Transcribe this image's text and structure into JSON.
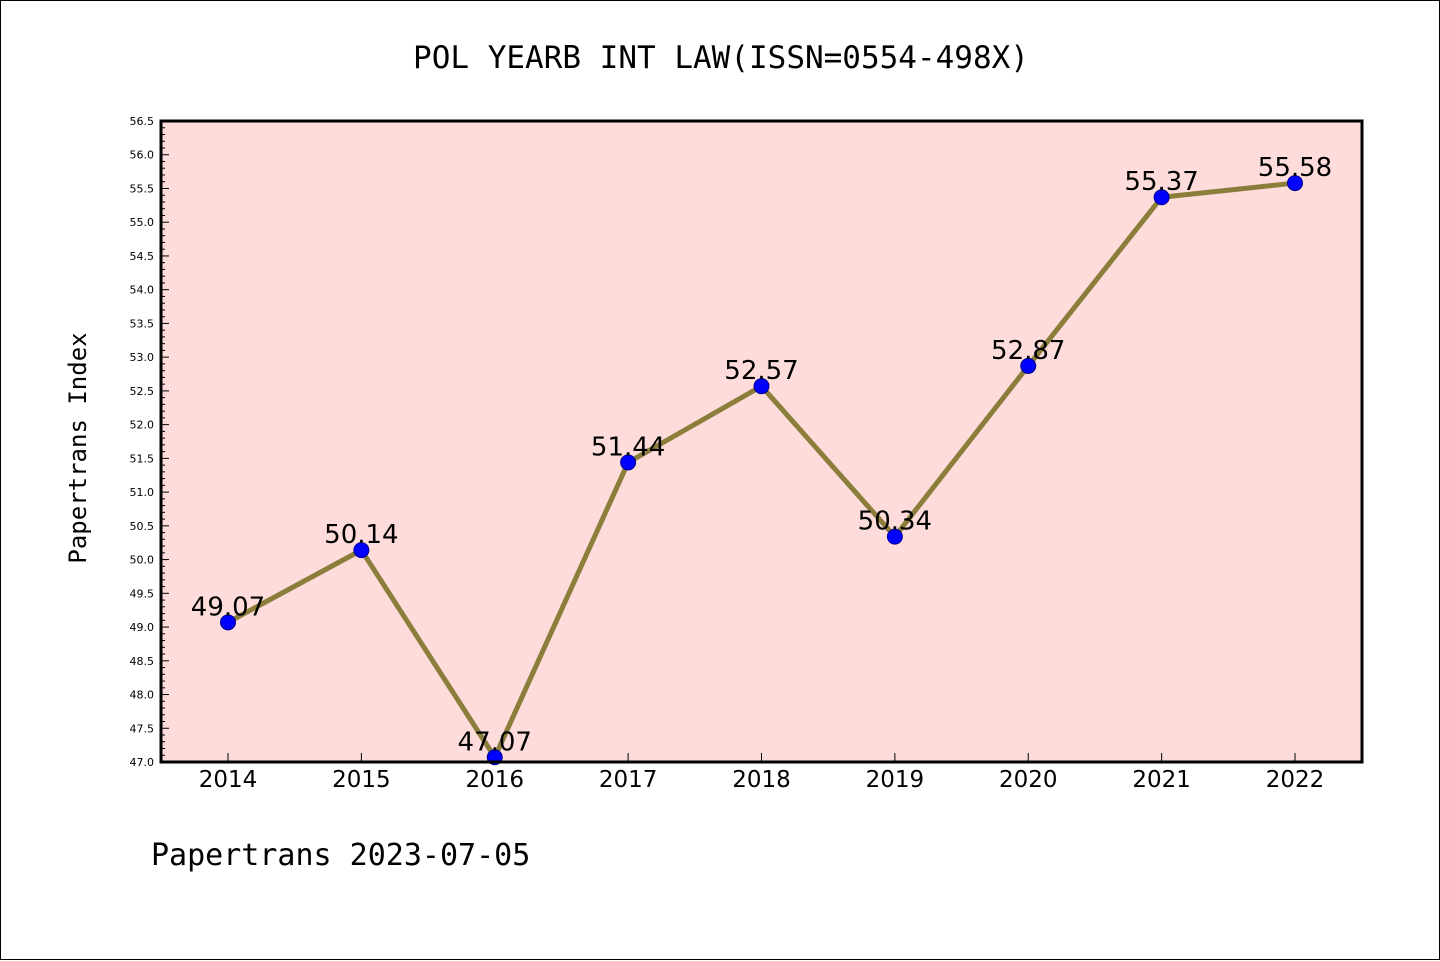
{
  "chart_data": {
    "type": "line",
    "title": "POL YEARB INT LAW(ISSN=0554-498X)",
    "ylabel": "Papertrans Index",
    "xlabel": "",
    "footer": "Papertrans 2023-07-05",
    "categories": [
      "2014",
      "2015",
      "2016",
      "2017",
      "2018",
      "2019",
      "2020",
      "2021",
      "2022"
    ],
    "values": [
      49.07,
      50.14,
      47.07,
      51.44,
      52.57,
      50.34,
      52.87,
      55.37,
      55.58
    ],
    "data_labels": [
      "49.07",
      "50.14",
      "47.07",
      "51.44",
      "52.57",
      "50.34",
      "52.87",
      "55.37",
      "55.58"
    ],
    "ylim": [
      47.0,
      56.5
    ],
    "yticks": [
      "47.0",
      "47.5",
      "48.0",
      "48.5",
      "49.0",
      "49.5",
      "50.0",
      "50.5",
      "51.0",
      "51.5",
      "52.0",
      "52.5",
      "53.0",
      "53.5",
      "54.0",
      "54.5",
      "55.0",
      "55.5",
      "56.0",
      "56.5"
    ],
    "grid": false,
    "colors": {
      "plot_background": "#fddcdb",
      "line": "#8b7d3a",
      "marker": "#0000ff",
      "marker_edge": "#00008b"
    }
  }
}
